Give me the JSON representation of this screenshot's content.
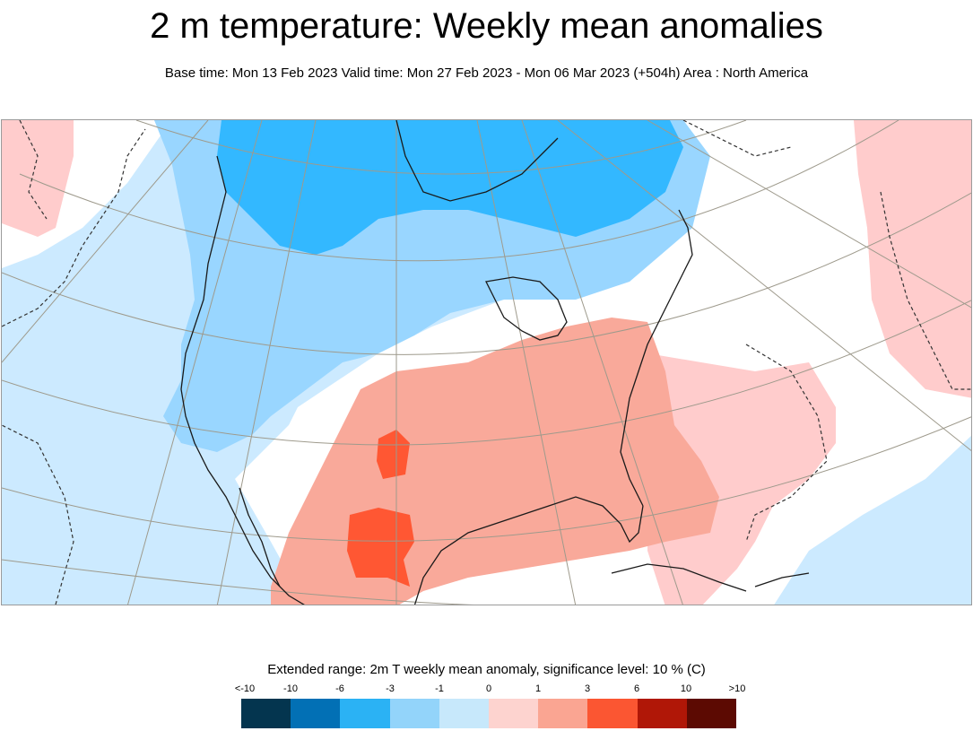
{
  "header": {
    "title": "2 m temperature: Weekly mean anomalies",
    "subtitle": "Base time: Mon 13 Feb 2023 Valid time: Mon 27 Feb 2023 - Mon 06 Mar 2023 (+504h) Area : North America"
  },
  "map": {
    "colors": {
      "strong_cold": "#33b8ff",
      "moderate_cold": "#99d6ff",
      "weak_cold": "#cceaff",
      "neutral": "#ffffff",
      "weak_warm": "#ffcccc",
      "moderate_warm": "#f9a99a",
      "strong_warm": "#ff5733",
      "coastline": "#1a1a1a",
      "graticule": "#9e9a8c"
    }
  },
  "legend": {
    "title": "Extended range: 2m T weekly mean anomaly, significance level: 10 % (C)",
    "labels": [
      "<-10",
      "-10",
      "-6",
      "-3",
      "-1",
      "0",
      "1",
      "3",
      "6",
      "10",
      ">10"
    ],
    "colors": [
      "#04354f",
      "#0270b5",
      "#2bb2f4",
      "#93d4fa",
      "#c7e8fb",
      "#fdd3cf",
      "#faa592",
      "#fb5632",
      "#b01707",
      "#5c0a02"
    ]
  }
}
